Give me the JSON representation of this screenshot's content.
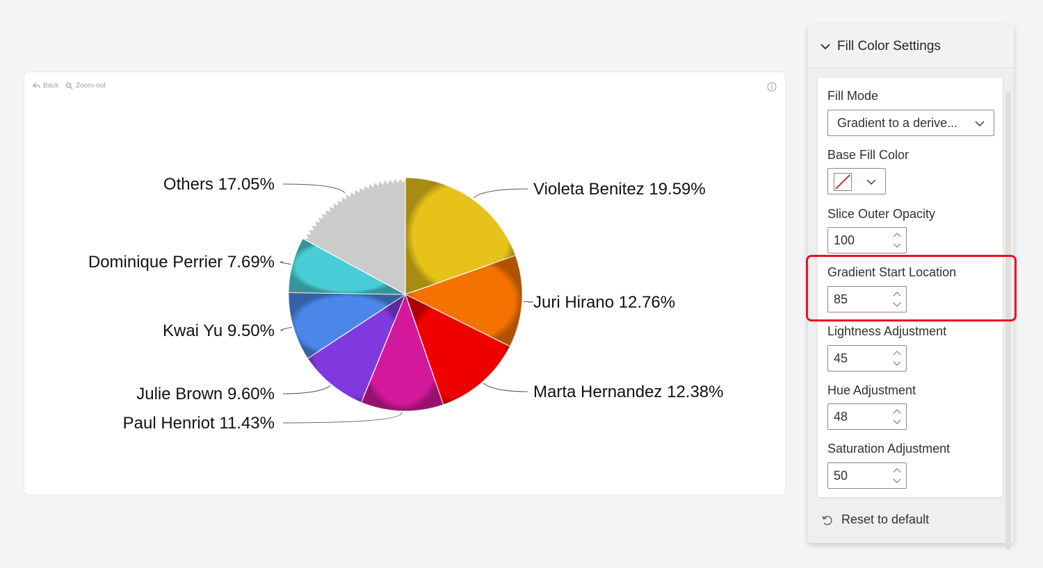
{
  "toolbar": {
    "back_label": "Back",
    "zoom_out_label": "Zoom-out"
  },
  "panel": {
    "title": "Fill Color Settings",
    "fill_mode_label": "Fill Mode",
    "fill_mode_value": "Gradient to a derive...",
    "base_fill_color_label": "Base Fill Color",
    "slice_outer_opacity_label": "Slice Outer Opacity",
    "slice_outer_opacity_value": "100",
    "gradient_start_label": "Gradient Start Location",
    "gradient_start_value": "85",
    "lightness_label": "Lightness Adjustment",
    "lightness_value": "45",
    "hue_label": "Hue Adjustment",
    "hue_value": "48",
    "saturation_label": "Saturation Adjustment",
    "saturation_value": "50",
    "reset_label": "Reset to default"
  },
  "colors": {
    "highlight": "#e81123"
  },
  "chart_data": {
    "type": "pie",
    "slices": [
      {
        "name": "Violeta Benitez",
        "value": 19.59,
        "label": "Violeta Benitez 19.59%",
        "color": "#e6c21a"
      },
      {
        "name": "Juri Hirano",
        "value": 12.76,
        "label": "Juri Hirano 12.76%",
        "color": "#f47200"
      },
      {
        "name": "Marta Hernandez",
        "value": 12.38,
        "label": "Marta Hernandez 12.38%",
        "color": "#ee0000"
      },
      {
        "name": "Paul Henriot",
        "value": 11.43,
        "label": "Paul Henriot 11.43%",
        "color": "#d4189c"
      },
      {
        "name": "Julie Brown",
        "value": 9.6,
        "label": "Julie Brown 9.60%",
        "color": "#8039de"
      },
      {
        "name": "Kwai Yu",
        "value": 9.5,
        "label": "Kwai Yu 9.50%",
        "color": "#4a87e8"
      },
      {
        "name": "Dominique Perrier",
        "value": 7.69,
        "label": "Dominique Perrier 7.69%",
        "color": "#48ced6"
      },
      {
        "name": "Others",
        "value": 17.05,
        "label": "Others 17.05%",
        "color": "#cbcbcb"
      }
    ]
  }
}
